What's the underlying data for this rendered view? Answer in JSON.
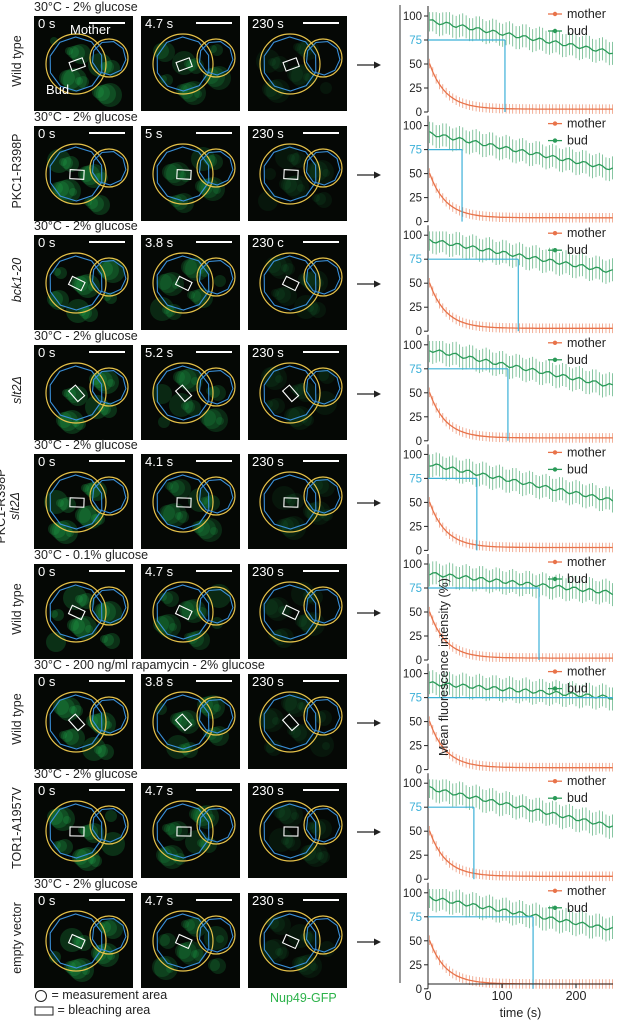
{
  "rows": [
    {
      "condition": "30°C - 2% glucose",
      "label": "Wild type",
      "label_italic": "",
      "times": [
        "0 s",
        "4.7 s",
        "230 s"
      ],
      "bleach": "mother",
      "threshold_time": 104
    },
    {
      "condition": "30°C - 2% glucose",
      "label": "PKC1-R398P",
      "label_italic": "",
      "times": [
        "0 s",
        "5 s",
        "230 s"
      ],
      "bleach": "mother",
      "threshold_time": 46
    },
    {
      "condition": "30°C - 2% glucose",
      "label": "",
      "label_italic": "bck1-20",
      "times": [
        "0 s",
        "3.8 s",
        "230 c"
      ],
      "bleach": "mother",
      "threshold_time": 122
    },
    {
      "condition": "30°C - 2% glucose",
      "label": "",
      "label_italic": "slt2Δ",
      "times": [
        "0 s",
        "5.2 s",
        "230 s"
      ],
      "bleach": "mother",
      "threshold_time": 108
    },
    {
      "condition": "30°C - 2% glucose",
      "label": "PKC1-R398P",
      "label_italic": "slt2Δ",
      "times": [
        "0 s",
        "4.1 s",
        "230 s"
      ],
      "bleach": "mother",
      "threshold_time": 66
    },
    {
      "condition": "30°C - 0.1% glucose",
      "label": "Wild type",
      "label_italic": "",
      "times": [
        "0 s",
        "4.7 s",
        "230 s"
      ],
      "bleach": "mother",
      "threshold_time": 150
    },
    {
      "condition": "30°C - 200 ng/ml rapamycin - 2% glucose",
      "label": "Wild type",
      "label_italic": "",
      "times": [
        "0 s",
        "3.8 s",
        "230 s"
      ],
      "bleach": "mother",
      "threshold_time": null
    },
    {
      "condition": "30°C - 2% glucose",
      "label": "TOR1-A1957V",
      "label_italic": "",
      "times": [
        "0 s",
        "4.7 s",
        "230 s"
      ],
      "bleach": "mother",
      "threshold_time": 62
    },
    {
      "condition": "30°C - 2% glucose",
      "label": "empty vector",
      "label_italic": "",
      "times": [
        "0 s",
        "4.7 s",
        "230 s"
      ],
      "bleach": "mother",
      "threshold_time": 142
    }
  ],
  "first_panel_labels": {
    "mother": "Mother",
    "bud": "Bud"
  },
  "legend": {
    "measurement": "= measurement area",
    "bleaching": "= bleaching area",
    "stain": "Nup49-GFP"
  },
  "colors": {
    "mother": "#e8734a",
    "bud": "#2a9a58",
    "threshold": "#3bb0d8",
    "cell_outline_yellow": "#e6c24a",
    "cell_outline_blue": "#3a8fd8"
  },
  "chart_data": {
    "type": "line",
    "ylabel": "Mean fluorescence intensity (%)",
    "xlabel": "time (s)",
    "xlim": [
      0,
      250
    ],
    "ylim": [
      0,
      100
    ],
    "x_ticks": [
      0,
      100,
      200
    ],
    "y_ticks": [
      0,
      25,
      50,
      75,
      100
    ],
    "threshold_value": 75,
    "series_names": [
      "mother",
      "bud"
    ],
    "panels": [
      {
        "bud_start": 95,
        "bud_end": 62,
        "mother_floor": 3,
        "threshold_time": 104
      },
      {
        "bud_start": 92,
        "bud_end": 55,
        "mother_floor": 4,
        "threshold_time": 46
      },
      {
        "bud_start": 95,
        "bud_end": 62,
        "mother_floor": 3,
        "threshold_time": 122
      },
      {
        "bud_start": 95,
        "bud_end": 57,
        "mother_floor": 3,
        "threshold_time": 108
      },
      {
        "bud_start": 90,
        "bud_end": 52,
        "mother_floor": 3,
        "threshold_time": 66
      },
      {
        "bud_start": 90,
        "bud_end": 70,
        "mother_floor": 2,
        "threshold_time": 150
      },
      {
        "bud_start": 90,
        "bud_end": 75,
        "mother_floor": 2,
        "threshold_time": null
      },
      {
        "bud_start": 95,
        "bud_end": 55,
        "mother_floor": 3,
        "threshold_time": 62
      },
      {
        "bud_start": 95,
        "bud_end": 62,
        "mother_floor": 5,
        "threshold_time": 142
      }
    ]
  }
}
